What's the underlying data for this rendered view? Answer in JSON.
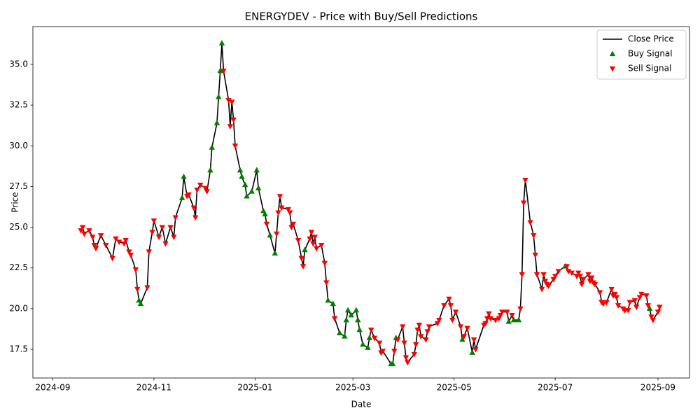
{
  "chart_data": {
    "type": "line",
    "title": "ENERGYDEV - Price with Buy/Sell Predictions",
    "x_label": "Date",
    "y_label": "Price",
    "xlim": [
      "2024-08-20",
      "2025-09-20"
    ],
    "xticks": [
      {
        "value": "2024-09-01",
        "label": "2024-09"
      },
      {
        "value": "2024-11-01",
        "label": "2024-11"
      },
      {
        "value": "2025-01-01",
        "label": "2025-01"
      },
      {
        "value": "2025-03-01",
        "label": "2025-03"
      },
      {
        "value": "2025-05-01",
        "label": "2025-05"
      },
      {
        "value": "2025-07-01",
        "label": "2025-07"
      },
      {
        "value": "2025-09-01",
        "label": "2025-09"
      }
    ],
    "ylim": [
      15.74,
      37.32
    ],
    "yticks": [
      17.5,
      {
        "value": 20,
        "label": "20.0"
      },
      22.5,
      {
        "value": 25,
        "label": "25.0"
      },
      27.5,
      {
        "value": 30,
        "label": "30.0"
      },
      32.5,
      {
        "value": 35,
        "label": "35.0"
      }
    ],
    "grid": false,
    "legend": "upper right",
    "series": [
      {
        "name": "Close Price",
        "kind": "line",
        "color": "#000000",
        "x": [
          "2024-09-18",
          "2024-09-19",
          "2024-09-20",
          "2024-09-23",
          "2024-09-25",
          "2024-09-26",
          "2024-09-27",
          "2024-09-30",
          "2024-10-03",
          "2024-10-07",
          "2024-10-09",
          "2024-10-11",
          "2024-10-14",
          "2024-10-15",
          "2024-10-17",
          "2024-10-18",
          "2024-10-21",
          "2024-10-22",
          "2024-10-23",
          "2024-10-24",
          "2024-10-28",
          "2024-10-29",
          "2024-10-31",
          "2024-11-01",
          "2024-11-04",
          "2024-11-06",
          "2024-11-08",
          "2024-11-11",
          "2024-11-13",
          "2024-11-14",
          "2024-11-18",
          "2024-11-19",
          "2024-11-21",
          "2024-11-22",
          "2024-11-25",
          "2024-11-26",
          "2024-11-27",
          "2024-11-29",
          "2024-12-02",
          "2024-12-03",
          "2024-12-05",
          "2024-12-06",
          "2024-12-09",
          "2024-12-10",
          "2024-12-11",
          "2024-12-12",
          "2024-12-13",
          "2024-12-16",
          "2024-12-17",
          "2024-12-18",
          "2024-12-19",
          "2024-12-20",
          "2024-12-23",
          "2024-12-24",
          "2024-12-26",
          "2024-12-27",
          "2024-12-30",
          "2025-01-02",
          "2025-01-03",
          "2025-01-06",
          "2025-01-07",
          "2025-01-08",
          "2025-01-10",
          "2025-01-13",
          "2025-01-14",
          "2025-01-15",
          "2025-01-16",
          "2025-01-17",
          "2025-01-21",
          "2025-01-22",
          "2025-01-23",
          "2025-01-24",
          "2025-01-27",
          "2025-01-29",
          "2025-01-30",
          "2025-01-31",
          "2025-02-03",
          "2025-02-04",
          "2025-02-05",
          "2025-02-06",
          "2025-02-07",
          "2025-02-10",
          "2025-02-12",
          "2025-02-13",
          "2025-02-14",
          "2025-02-17",
          "2025-02-18",
          "2025-02-21",
          "2025-02-24",
          "2025-02-25",
          "2025-02-26",
          "2025-02-28",
          "2025-03-03",
          "2025-03-04",
          "2025-03-05",
          "2025-03-07",
          "2025-03-10",
          "2025-03-11",
          "2025-03-12",
          "2025-03-14",
          "2025-03-17",
          "2025-03-18",
          "2025-03-19",
          "2025-03-24",
          "2025-03-25",
          "2025-03-26",
          "2025-03-27",
          "2025-03-28",
          "2025-03-31",
          "2025-04-01",
          "2025-04-02",
          "2025-04-03",
          "2025-04-07",
          "2025-04-08",
          "2025-04-09",
          "2025-04-10",
          "2025-04-11",
          "2025-04-14",
          "2025-04-15",
          "2025-04-16",
          "2025-04-21",
          "2025-04-22",
          "2025-04-25",
          "2025-04-28",
          "2025-04-29",
          "2025-04-30",
          "2025-05-02",
          "2025-05-05",
          "2025-05-06",
          "2025-05-07",
          "2025-05-09",
          "2025-05-12",
          "2025-05-13",
          "2025-05-14",
          "2025-05-19",
          "2025-05-20",
          "2025-05-21",
          "2025-05-22",
          "2025-05-23",
          "2025-05-26",
          "2025-05-28",
          "2025-05-29",
          "2025-05-30",
          "2025-06-02",
          "2025-06-03",
          "2025-06-05",
          "2025-06-06",
          "2025-06-09",
          "2025-06-10",
          "2025-06-11",
          "2025-06-12",
          "2025-06-13",
          "2025-06-16",
          "2025-06-18",
          "2025-06-19",
          "2025-06-20",
          "2025-06-23",
          "2025-06-24",
          "2025-06-25",
          "2025-06-26",
          "2025-06-27",
          "2025-06-30",
          "2025-07-01",
          "2025-07-03",
          "2025-07-07",
          "2025-07-08",
          "2025-07-09",
          "2025-07-11",
          "2025-07-14",
          "2025-07-15",
          "2025-07-16",
          "2025-07-17",
          "2025-07-18",
          "2025-07-21",
          "2025-07-22",
          "2025-07-23",
          "2025-07-24",
          "2025-07-25",
          "2025-07-28",
          "2025-07-29",
          "2025-07-30",
          "2025-08-01",
          "2025-08-04",
          "2025-08-05",
          "2025-08-06",
          "2025-08-07",
          "2025-08-08",
          "2025-08-11",
          "2025-08-12",
          "2025-08-14",
          "2025-08-15",
          "2025-08-18",
          "2025-08-19",
          "2025-08-21",
          "2025-08-22",
          "2025-08-25",
          "2025-08-26",
          "2025-08-27",
          "2025-08-28",
          "2025-08-29",
          "2025-09-01",
          "2025-09-02"
        ],
        "values": [
          24.8,
          25.0,
          24.6,
          24.8,
          24.4,
          23.9,
          23.7,
          24.5,
          23.9,
          23.1,
          24.3,
          24.1,
          24.0,
          24.2,
          23.5,
          23.3,
          22.4,
          21.2,
          20.5,
          20.3,
          21.3,
          23.5,
          24.7,
          25.4,
          24.4,
          25.0,
          24.0,
          25.0,
          24.4,
          25.6,
          26.8,
          28.1,
          26.9,
          27.0,
          26.2,
          25.6,
          27.3,
          27.6,
          27.4,
          27.2,
          28.5,
          29.9,
          31.4,
          33.0,
          34.6,
          36.3,
          34.6,
          32.8,
          31.2,
          32.7,
          31.6,
          30.0,
          28.5,
          28.1,
          27.6,
          26.9,
          27.2,
          28.5,
          27.4,
          26.0,
          25.8,
          25.2,
          24.5,
          23.4,
          24.6,
          25.9,
          26.9,
          26.2,
          26.1,
          25.9,
          25.0,
          25.2,
          24.2,
          23.1,
          22.6,
          23.6,
          24.3,
          24.7,
          24.0,
          24.4,
          23.7,
          23.9,
          22.8,
          21.6,
          20.5,
          20.3,
          19.4,
          18.5,
          18.3,
          19.3,
          19.9,
          19.6,
          19.9,
          19.3,
          18.7,
          17.8,
          17.6,
          18.2,
          18.7,
          18.2,
          17.9,
          17.3,
          17.4,
          16.6,
          16.6,
          17.4,
          18.2,
          18.1,
          18.9,
          17.9,
          17.0,
          16.7,
          17.2,
          17.8,
          18.7,
          19.0,
          18.3,
          18.1,
          18.6,
          18.9,
          19.1,
          19.3,
          20.2,
          20.6,
          20.2,
          19.3,
          19.8,
          18.9,
          18.1,
          18.3,
          18.8,
          17.3,
          18.1,
          17.5,
          19.0,
          19.1,
          19.4,
          19.7,
          19.4,
          19.3,
          19.4,
          19.6,
          19.8,
          19.8,
          19.2,
          19.6,
          19.3,
          19.3,
          20.0,
          22.1,
          26.5,
          27.9,
          25.3,
          24.5,
          23.3,
          22.1,
          21.2,
          22.1,
          21.7,
          21.5,
          21.4,
          21.8,
          22.0,
          22.3,
          22.6,
          22.6,
          22.3,
          22.2,
          22.0,
          22.2,
          22.0,
          21.5,
          21.8,
          22.1,
          21.7,
          21.9,
          21.6,
          21.5,
          21.0,
          20.4,
          20.3,
          20.4,
          21.2,
          20.8,
          20.9,
          20.7,
          20.2,
          20.0,
          19.9,
          19.9,
          20.4,
          20.5,
          20.1,
          20.7,
          20.9,
          20.8,
          20.2,
          20.0,
          19.5,
          19.3,
          19.8,
          20.1
        ]
      },
      {
        "name": "Buy Signal",
        "kind": "scatter",
        "marker": "up",
        "color": "#008000",
        "x": [
          "2024-10-23",
          "2024-10-24",
          "2024-11-18",
          "2024-11-19",
          "2024-12-05",
          "2024-12-06",
          "2024-12-09",
          "2024-12-10",
          "2024-12-11",
          "2024-12-12",
          "2024-12-23",
          "2024-12-24",
          "2024-12-26",
          "2024-12-27",
          "2024-12-30",
          "2025-01-02",
          "2025-01-03",
          "2025-01-06",
          "2025-01-07",
          "2025-01-10",
          "2025-01-13",
          "2025-01-31",
          "2025-02-14",
          "2025-02-17",
          "2025-02-21",
          "2025-02-24",
          "2025-02-25",
          "2025-02-26",
          "2025-02-28",
          "2025-03-03",
          "2025-03-04",
          "2025-03-05",
          "2025-03-07",
          "2025-03-10",
          "2025-03-11",
          "2025-03-24",
          "2025-03-25",
          "2025-03-27",
          "2025-05-06",
          "2025-05-12",
          "2025-06-03",
          "2025-06-06",
          "2025-06-09",
          "2025-07-07",
          "2025-08-27"
        ],
        "values": [
          20.5,
          20.3,
          26.8,
          28.1,
          28.5,
          29.9,
          31.4,
          33.0,
          34.6,
          36.3,
          28.5,
          28.1,
          27.6,
          26.9,
          27.2,
          28.5,
          27.4,
          26.0,
          25.8,
          24.5,
          23.4,
          23.6,
          20.5,
          20.3,
          18.5,
          18.3,
          19.3,
          19.9,
          19.6,
          19.9,
          19.3,
          18.7,
          17.8,
          17.6,
          18.2,
          16.6,
          16.6,
          18.2,
          18.1,
          17.3,
          19.2,
          19.3,
          19.3,
          22.6,
          20.0
        ]
      },
      {
        "name": "Sell Signal",
        "kind": "scatter",
        "marker": "down",
        "color": "#ff0000",
        "x": [
          "2024-09-18",
          "2024-09-19",
          "2024-09-20",
          "2024-09-23",
          "2024-09-25",
          "2024-09-26",
          "2024-09-27",
          "2024-09-30",
          "2024-10-03",
          "2024-10-07",
          "2024-10-09",
          "2024-10-11",
          "2024-10-14",
          "2024-10-15",
          "2024-10-17",
          "2024-10-18",
          "2024-10-21",
          "2024-10-22",
          "2024-10-28",
          "2024-10-29",
          "2024-10-31",
          "2024-11-01",
          "2024-11-04",
          "2024-11-06",
          "2024-11-08",
          "2024-11-11",
          "2024-11-13",
          "2024-11-14",
          "2024-11-21",
          "2024-11-22",
          "2024-11-25",
          "2024-11-26",
          "2024-11-27",
          "2024-11-29",
          "2024-12-02",
          "2024-12-03",
          "2024-12-13",
          "2024-12-16",
          "2024-12-17",
          "2024-12-18",
          "2024-12-19",
          "2024-12-20",
          "2025-01-08",
          "2025-01-14",
          "2025-01-15",
          "2025-01-16",
          "2025-01-17",
          "2025-01-21",
          "2025-01-22",
          "2025-01-23",
          "2025-01-24",
          "2025-01-27",
          "2025-01-29",
          "2025-01-30",
          "2025-02-03",
          "2025-02-04",
          "2025-02-05",
          "2025-02-06",
          "2025-02-07",
          "2025-02-10",
          "2025-02-12",
          "2025-02-13",
          "2025-02-18",
          "2025-03-12",
          "2025-03-14",
          "2025-03-17",
          "2025-03-18",
          "2025-03-19",
          "2025-03-26",
          "2025-03-28",
          "2025-03-31",
          "2025-04-01",
          "2025-04-02",
          "2025-04-03",
          "2025-04-07",
          "2025-04-08",
          "2025-04-09",
          "2025-04-10",
          "2025-04-11",
          "2025-04-14",
          "2025-04-15",
          "2025-04-16",
          "2025-04-21",
          "2025-04-22",
          "2025-04-25",
          "2025-04-28",
          "2025-04-29",
          "2025-04-30",
          "2025-05-02",
          "2025-05-05",
          "2025-05-07",
          "2025-05-09",
          "2025-05-13",
          "2025-05-14",
          "2025-05-19",
          "2025-05-20",
          "2025-05-21",
          "2025-05-22",
          "2025-05-23",
          "2025-05-26",
          "2025-05-28",
          "2025-05-29",
          "2025-05-30",
          "2025-06-02",
          "2025-06-05",
          "2025-06-10",
          "2025-06-11",
          "2025-06-12",
          "2025-06-13",
          "2025-06-16",
          "2025-06-18",
          "2025-06-19",
          "2025-06-20",
          "2025-06-23",
          "2025-06-24",
          "2025-06-25",
          "2025-06-26",
          "2025-06-27",
          "2025-06-30",
          "2025-07-01",
          "2025-07-03",
          "2025-07-08",
          "2025-07-09",
          "2025-07-11",
          "2025-07-14",
          "2025-07-15",
          "2025-07-16",
          "2025-07-17",
          "2025-07-18",
          "2025-07-21",
          "2025-07-22",
          "2025-07-23",
          "2025-07-24",
          "2025-07-25",
          "2025-07-28",
          "2025-07-29",
          "2025-07-30",
          "2025-08-01",
          "2025-08-04",
          "2025-08-05",
          "2025-08-06",
          "2025-08-07",
          "2025-08-08",
          "2025-08-11",
          "2025-08-12",
          "2025-08-14",
          "2025-08-15",
          "2025-08-18",
          "2025-08-19",
          "2025-08-21",
          "2025-08-22",
          "2025-08-25",
          "2025-08-26",
          "2025-08-28",
          "2025-08-29",
          "2025-09-01",
          "2025-09-02"
        ],
        "values": [
          24.8,
          25.0,
          24.6,
          24.8,
          24.4,
          23.9,
          23.7,
          24.5,
          23.9,
          23.1,
          24.3,
          24.1,
          24.0,
          24.2,
          23.5,
          23.3,
          22.4,
          21.2,
          21.3,
          23.5,
          24.7,
          25.4,
          24.4,
          25.0,
          24.0,
          25.0,
          24.4,
          25.6,
          26.9,
          27.0,
          26.2,
          25.6,
          27.3,
          27.6,
          27.4,
          27.2,
          34.6,
          32.8,
          31.2,
          32.7,
          31.6,
          30.0,
          25.2,
          24.6,
          25.9,
          26.9,
          26.2,
          26.1,
          25.9,
          25.0,
          25.2,
          24.2,
          23.1,
          22.6,
          24.3,
          24.7,
          24.0,
          24.4,
          23.7,
          23.9,
          22.8,
          21.6,
          19.4,
          18.7,
          18.2,
          17.9,
          17.3,
          17.4,
          17.4,
          18.1,
          18.9,
          17.9,
          17.0,
          16.7,
          17.2,
          17.8,
          18.7,
          19.0,
          18.3,
          18.1,
          18.6,
          18.9,
          19.1,
          19.3,
          20.2,
          20.6,
          20.2,
          19.3,
          19.8,
          18.9,
          18.3,
          18.8,
          18.1,
          17.5,
          19.0,
          19.1,
          19.4,
          19.7,
          19.4,
          19.3,
          19.4,
          19.6,
          19.8,
          19.8,
          19.6,
          20.0,
          22.1,
          26.5,
          27.9,
          25.3,
          24.5,
          23.3,
          22.1,
          21.2,
          22.1,
          21.7,
          21.5,
          21.4,
          21.8,
          22.0,
          22.3,
          22.6,
          22.3,
          22.2,
          22.0,
          22.2,
          22.0,
          21.5,
          21.8,
          22.1,
          21.7,
          21.9,
          21.6,
          21.5,
          21.0,
          20.4,
          20.3,
          20.4,
          21.2,
          20.8,
          20.9,
          20.7,
          20.2,
          20.0,
          19.9,
          19.9,
          20.4,
          20.5,
          20.1,
          20.7,
          20.9,
          20.8,
          20.2,
          19.5,
          19.3,
          19.8,
          20.1
        ]
      }
    ]
  }
}
